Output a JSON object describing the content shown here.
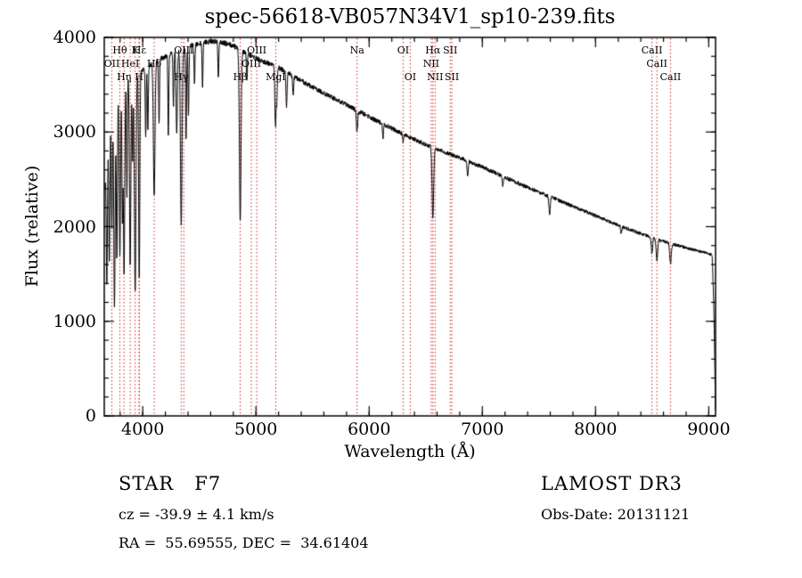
{
  "chart_data": {
    "type": "line",
    "title": "spec-56618-VB057N34V1_sp10-239.fits",
    "xlabel": "Wavelength (Å)",
    "ylabel": "Flux (relative)",
    "xlim": [
      3660,
      9060
    ],
    "ylim": [
      0,
      4000
    ],
    "xticks": [
      4000,
      5000,
      6000,
      7000,
      8000,
      9000
    ],
    "yticks": [
      0,
      1000,
      2000,
      3000,
      4000
    ],
    "x_minor_step": 200,
    "y_minor_step": 200,
    "grid": false,
    "legend": false,
    "background": "#ffffff",
    "frame_color": "#000000",
    "line_color": "#000000",
    "marker_color": "#cc2222",
    "noise_amplitude": 22,
    "continuum": {
      "columns": [
        "wavelength",
        "flux"
      ],
      "rows": [
        [
          3665,
          2400
        ],
        [
          3690,
          2900
        ],
        [
          3720,
          3250
        ],
        [
          3760,
          3420
        ],
        [
          3800,
          3500
        ],
        [
          3850,
          3560
        ],
        [
          3900,
          3600
        ],
        [
          3960,
          3640
        ],
        [
          4000,
          3660
        ],
        [
          4100,
          3730
        ],
        [
          4200,
          3800
        ],
        [
          4300,
          3860
        ],
        [
          4400,
          3900
        ],
        [
          4500,
          3930
        ],
        [
          4600,
          3960
        ],
        [
          4700,
          3950
        ],
        [
          4800,
          3910
        ],
        [
          4900,
          3840
        ],
        [
          5000,
          3780
        ],
        [
          5100,
          3730
        ],
        [
          5200,
          3680
        ],
        [
          5400,
          3540
        ],
        [
          5600,
          3410
        ],
        [
          5800,
          3290
        ],
        [
          6000,
          3160
        ],
        [
          6200,
          3040
        ],
        [
          6400,
          2920
        ],
        [
          6600,
          2815
        ],
        [
          6800,
          2730
        ],
        [
          7000,
          2630
        ],
        [
          7200,
          2520
        ],
        [
          7400,
          2415
        ],
        [
          7600,
          2315
        ],
        [
          7800,
          2215
        ],
        [
          8000,
          2115
        ],
        [
          8200,
          2015
        ],
        [
          8400,
          1925
        ],
        [
          8600,
          1845
        ],
        [
          8800,
          1775
        ],
        [
          9000,
          1715
        ],
        [
          9030,
          1700
        ],
        [
          9045,
          1150
        ],
        [
          9055,
          400
        ],
        [
          9058,
          60
        ]
      ]
    },
    "absorption_lines": {
      "columns": [
        "wavelength",
        "depth_fraction",
        "sigma"
      ],
      "rows": [
        [
          3683,
          0.5,
          5
        ],
        [
          3705,
          0.48,
          5
        ],
        [
          3727,
          0.4,
          5
        ],
        [
          3750,
          0.66,
          6
        ],
        [
          3771,
          0.52,
          5
        ],
        [
          3798,
          0.52,
          6
        ],
        [
          3820,
          0.4,
          4
        ],
        [
          3835,
          0.58,
          6
        ],
        [
          3860,
          0.35,
          4
        ],
        [
          3889,
          0.56,
          6
        ],
        [
          3910,
          0.25,
          4
        ],
        [
          3933,
          0.64,
          7
        ],
        [
          3968,
          0.32,
          5
        ],
        [
          3970,
          0.3,
          5
        ],
        [
          4026,
          0.2,
          4
        ],
        [
          4045,
          0.18,
          4
        ],
        [
          4101,
          0.38,
          7
        ],
        [
          4144,
          0.18,
          4
        ],
        [
          4226,
          0.22,
          4
        ],
        [
          4271,
          0.15,
          4
        ],
        [
          4300,
          0.22,
          6
        ],
        [
          4340,
          0.48,
          7
        ],
        [
          4383,
          0.25,
          4
        ],
        [
          4404,
          0.18,
          4
        ],
        [
          4457,
          0.1,
          4
        ],
        [
          4528,
          0.12,
          4
        ],
        [
          4668,
          0.1,
          4
        ],
        [
          4861,
          0.47,
          7
        ],
        [
          4920,
          0.08,
          4
        ],
        [
          5169,
          0.1,
          4
        ],
        [
          5175,
          0.12,
          4
        ],
        [
          5184,
          0.1,
          4
        ],
        [
          5270,
          0.1,
          5
        ],
        [
          5329,
          0.06,
          4
        ],
        [
          5893,
          0.07,
          6
        ],
        [
          6122,
          0.05,
          4
        ],
        [
          6300,
          0.03,
          4
        ],
        [
          6563,
          0.26,
          7
        ],
        [
          6870,
          0.06,
          5
        ],
        [
          7180,
          0.04,
          5
        ],
        [
          7594,
          0.08,
          6
        ],
        [
          8227,
          0.04,
          5
        ],
        [
          8498,
          0.09,
          6
        ],
        [
          8542,
          0.12,
          7
        ],
        [
          8662,
          0.12,
          7
        ]
      ]
    },
    "spectral_line_markers": [
      {
        "label": "OII",
        "wl": 3727,
        "row": 2
      },
      {
        "label": "Hθ",
        "wl": 3798,
        "row": 1
      },
      {
        "label": "Hη",
        "wl": 3835,
        "row": 3
      },
      {
        "label": "HeI",
        "wl": 3889,
        "row": 2
      },
      {
        "label": "K",
        "wl": 3933,
        "row": 1
      },
      {
        "label": "H",
        "wl": 3968,
        "row": 3
      },
      {
        "label": "Hε",
        "wl": 3970,
        "row": 1
      },
      {
        "label": "Hδ",
        "wl": 4101,
        "row": 2
      },
      {
        "label": "Hγ",
        "wl": 4340,
        "row": 3
      },
      {
        "label": "OIII",
        "wl": 4363,
        "row": 1
      },
      {
        "label": "Hβ",
        "wl": 4861,
        "row": 3
      },
      {
        "label": "OIII",
        "wl": 4959,
        "row": 2
      },
      {
        "label": "OIII",
        "wl": 5007,
        "row": 1
      },
      {
        "label": "MgI",
        "wl": 5175,
        "row": 3
      },
      {
        "label": "Na",
        "wl": 5893,
        "row": 1
      },
      {
        "label": "OI",
        "wl": 6300,
        "row": 1
      },
      {
        "label": "OI",
        "wl": 6363,
        "row": 3
      },
      {
        "label": "NII",
        "wl": 6548,
        "row": 2
      },
      {
        "label": "Hα",
        "wl": 6563,
        "row": 1
      },
      {
        "label": "NII",
        "wl": 6583,
        "row": 3
      },
      {
        "label": "SII",
        "wl": 6716,
        "row": 1
      },
      {
        "label": "SII",
        "wl": 6731,
        "row": 3
      },
      {
        "label": "CaII",
        "wl": 8498,
        "row": 1
      },
      {
        "label": "CaII",
        "wl": 8542,
        "row": 2
      },
      {
        "label": "CaII",
        "wl": 8662,
        "row": 3
      }
    ]
  },
  "footer": {
    "class_label": "STAR   F7",
    "survey": "LAMOST DR3",
    "cz": "cz = -39.9 ± 4.1 km/s",
    "obs_date": "Obs-Date: 20131121",
    "ra_dec": "RA =  55.69555, DEC =  34.61404"
  }
}
